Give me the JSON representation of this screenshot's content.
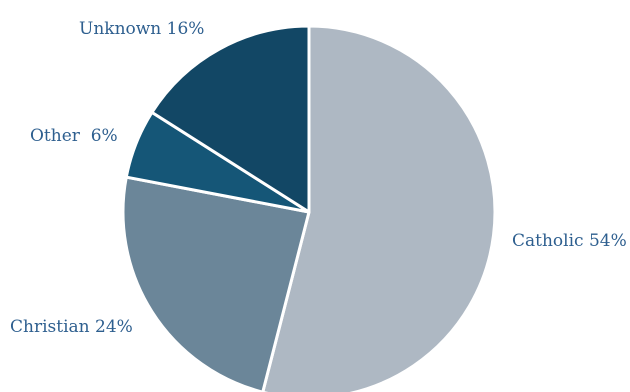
{
  "chart_data": {
    "type": "pie",
    "slices": [
      {
        "label": "Catholic",
        "value": 54,
        "display": "Catholic 54%",
        "color": "#aeb8c3"
      },
      {
        "label": "Christian",
        "value": 24,
        "display": "Christian 24%",
        "color": "#6b8699"
      },
      {
        "label": "Other",
        "value": 6,
        "display": "Other  6%",
        "color": "#155677"
      },
      {
        "label": "Unknown",
        "value": 16,
        "display": "Unknown 16%",
        "color": "#124765"
      }
    ],
    "start": "12 o'clock",
    "direction": "clockwise",
    "legend": "none",
    "label_color": "#2e5f8f",
    "border_color": "#ffffff"
  }
}
